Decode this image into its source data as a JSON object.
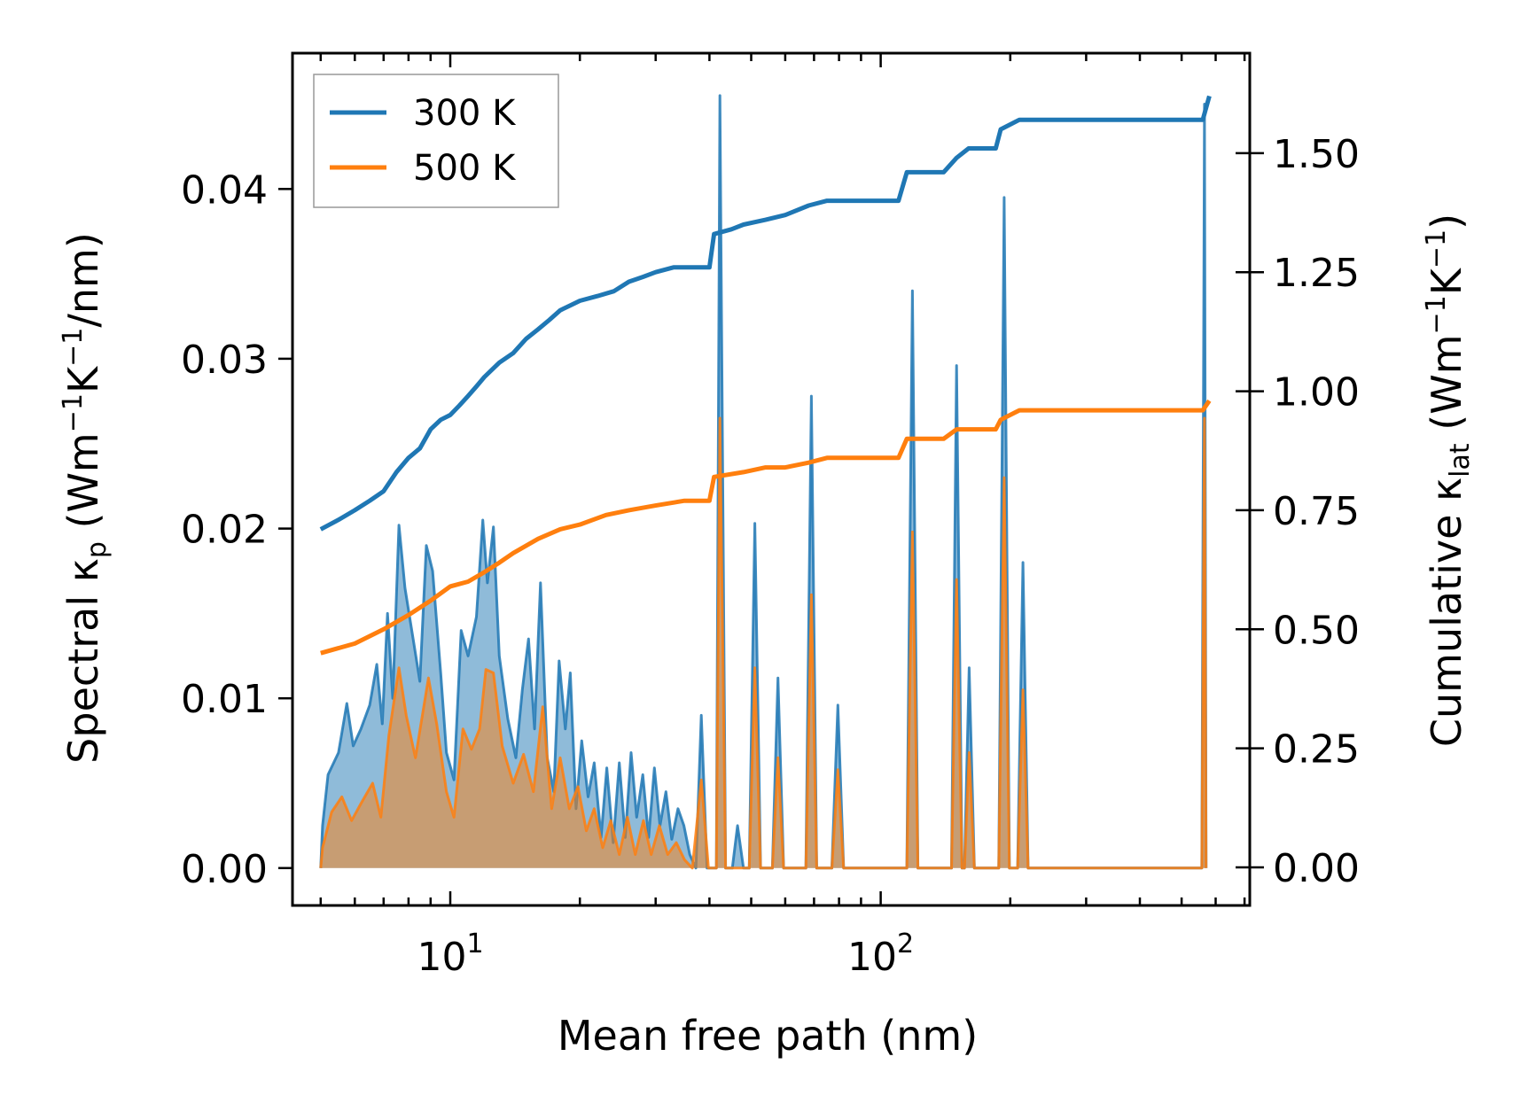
{
  "chart_data": {
    "type": "line",
    "xlabel": "Mean free path (nm)",
    "ylabel_left": {
      "prefix": "Spectral κ",
      "sub": "p",
      "units_open": " (Wm",
      "sup1": "−1",
      "units_mid": "K",
      "sup2": "−1",
      "units_close": "/nm)"
    },
    "ylabel_right": {
      "prefix": "Cumulative κ",
      "sub": "lat",
      "units_open": " (Wm",
      "sup1": "−1",
      "units_mid": "K",
      "sup2": "−1",
      "units_close": ")"
    },
    "x_scale": "log",
    "xlim": [
      4.3,
      720
    ],
    "ylim_left": [
      -0.0022,
      0.048
    ],
    "ylim_right": [
      -0.08,
      1.71
    ],
    "x_major_ticks": [
      {
        "value": 10,
        "base": "10",
        "exp": "1"
      },
      {
        "value": 100,
        "base": "10",
        "exp": "2"
      }
    ],
    "y_left_ticks": [
      {
        "value": 0.0,
        "label": "0.00"
      },
      {
        "value": 0.01,
        "label": "0.01"
      },
      {
        "value": 0.02,
        "label": "0.02"
      },
      {
        "value": 0.03,
        "label": "0.03"
      },
      {
        "value": 0.04,
        "label": "0.04"
      }
    ],
    "y_right_ticks": [
      {
        "value": 0.0,
        "label": "0.00"
      },
      {
        "value": 0.25,
        "label": "0.25"
      },
      {
        "value": 0.5,
        "label": "0.50"
      },
      {
        "value": 0.75,
        "label": "0.75"
      },
      {
        "value": 1.0,
        "label": "1.00"
      },
      {
        "value": 1.25,
        "label": "1.25"
      },
      {
        "value": 1.5,
        "label": "1.50"
      }
    ],
    "legend_position": "upper-left",
    "series": [
      {
        "name": "300 K",
        "color": "#1f77b4",
        "cumulative": [
          [
            5.0,
            0.71
          ],
          [
            5.5,
            0.73
          ],
          [
            6.0,
            0.75
          ],
          [
            6.5,
            0.77
          ],
          [
            7.0,
            0.79
          ],
          [
            7.5,
            0.83
          ],
          [
            8.0,
            0.86
          ],
          [
            8.5,
            0.88
          ],
          [
            9.0,
            0.92
          ],
          [
            9.5,
            0.94
          ],
          [
            10.0,
            0.95
          ],
          [
            10.5,
            0.97
          ],
          [
            11.0,
            0.99
          ],
          [
            11.5,
            1.01
          ],
          [
            12.0,
            1.03
          ],
          [
            13.0,
            1.06
          ],
          [
            14.0,
            1.08
          ],
          [
            15.0,
            1.11
          ],
          [
            16.0,
            1.13
          ],
          [
            17.0,
            1.15
          ],
          [
            18.0,
            1.17
          ],
          [
            19.0,
            1.18
          ],
          [
            20.0,
            1.19
          ],
          [
            22.0,
            1.2
          ],
          [
            24.0,
            1.21
          ],
          [
            26.0,
            1.23
          ],
          [
            28.0,
            1.24
          ],
          [
            30.0,
            1.25
          ],
          [
            33.0,
            1.26
          ],
          [
            36.0,
            1.26
          ],
          [
            40.0,
            1.26
          ],
          [
            41.0,
            1.33
          ],
          [
            45.0,
            1.34
          ],
          [
            48.0,
            1.35
          ],
          [
            54.0,
            1.36
          ],
          [
            60.0,
            1.37
          ],
          [
            68.0,
            1.39
          ],
          [
            75.0,
            1.4
          ],
          [
            100.0,
            1.4
          ],
          [
            110.0,
            1.4
          ],
          [
            115.0,
            1.46
          ],
          [
            140.0,
            1.46
          ],
          [
            150.0,
            1.49
          ],
          [
            160.0,
            1.51
          ],
          [
            185.0,
            1.51
          ],
          [
            190.0,
            1.55
          ],
          [
            210.0,
            1.57
          ],
          [
            560.0,
            1.57
          ],
          [
            580.0,
            1.62
          ]
        ],
        "spectral": [
          [
            5.0,
            0.0
          ],
          [
            5.05,
            0.0025
          ],
          [
            5.2,
            0.0055
          ],
          [
            5.5,
            0.0068
          ],
          [
            5.75,
            0.0097
          ],
          [
            5.95,
            0.0072
          ],
          [
            6.2,
            0.0082
          ],
          [
            6.5,
            0.0096
          ],
          [
            6.75,
            0.012
          ],
          [
            6.95,
            0.0085
          ],
          [
            7.15,
            0.015
          ],
          [
            7.35,
            0.01
          ],
          [
            7.6,
            0.0202
          ],
          [
            7.85,
            0.0165
          ],
          [
            8.2,
            0.0135
          ],
          [
            8.5,
            0.011
          ],
          [
            8.8,
            0.019
          ],
          [
            9.1,
            0.0175
          ],
          [
            9.5,
            0.0115
          ],
          [
            9.8,
            0.0068
          ],
          [
            10.2,
            0.0052
          ],
          [
            10.6,
            0.014
          ],
          [
            11.0,
            0.0125
          ],
          [
            11.5,
            0.0148
          ],
          [
            11.9,
            0.0205
          ],
          [
            12.2,
            0.0168
          ],
          [
            12.6,
            0.0201
          ],
          [
            13.0,
            0.0125
          ],
          [
            13.6,
            0.0088
          ],
          [
            14.2,
            0.0065
          ],
          [
            14.7,
            0.0105
          ],
          [
            15.2,
            0.0135
          ],
          [
            15.7,
            0.0082
          ],
          [
            16.2,
            0.0168
          ],
          [
            16.8,
            0.0065
          ],
          [
            17.4,
            0.0045
          ],
          [
            17.9,
            0.0122
          ],
          [
            18.5,
            0.0082
          ],
          [
            19.0,
            0.0115
          ],
          [
            19.6,
            0.0035
          ],
          [
            20.2,
            0.0075
          ],
          [
            20.9,
            0.0042
          ],
          [
            21.6,
            0.0062
          ],
          [
            22.4,
            0.0018
          ],
          [
            23.1,
            0.0059
          ],
          [
            23.9,
            0.0015
          ],
          [
            24.7,
            0.0062
          ],
          [
            25.5,
            0.0018
          ],
          [
            26.3,
            0.0068
          ],
          [
            27.1,
            0.003
          ],
          [
            28.0,
            0.0055
          ],
          [
            28.9,
            0.0018
          ],
          [
            29.8,
            0.0059
          ],
          [
            30.7,
            0.0025
          ],
          [
            31.7,
            0.0045
          ],
          [
            32.7,
            0.0017
          ],
          [
            33.8,
            0.0035
          ],
          [
            34.9,
            0.0025
          ],
          [
            36.0,
            0.0008
          ],
          [
            37.2,
            0.0
          ],
          [
            38.3,
            0.009
          ],
          [
            39.5,
            0.0
          ],
          [
            41.5,
            0.0
          ],
          [
            42.3,
            0.0455
          ],
          [
            43.6,
            0.0
          ],
          [
            45.2,
            0.0
          ],
          [
            46.5,
            0.0025
          ],
          [
            48.0,
            0.0
          ],
          [
            49.5,
            0.0
          ],
          [
            51.0,
            0.0203
          ],
          [
            52.6,
            0.0
          ],
          [
            56.0,
            0.0
          ],
          [
            57.7,
            0.0112
          ],
          [
            59.5,
            0.0
          ],
          [
            67.0,
            0.0
          ],
          [
            69.0,
            0.0278
          ],
          [
            71.0,
            0.0
          ],
          [
            77.0,
            0.0
          ],
          [
            79.5,
            0.0096
          ],
          [
            82.0,
            0.0
          ],
          [
            115.0,
            0.0
          ],
          [
            118.5,
            0.034
          ],
          [
            122.0,
            0.0
          ],
          [
            146.0,
            0.0
          ],
          [
            150.0,
            0.0296
          ],
          [
            154.5,
            0.0
          ],
          [
            156.5,
            0.0
          ],
          [
            160.5,
            0.0118
          ],
          [
            165.0,
            0.0
          ],
          [
            188.0,
            0.0
          ],
          [
            193.5,
            0.0395
          ],
          [
            199.0,
            0.0
          ],
          [
            208.0,
            0.0
          ],
          [
            214.0,
            0.018
          ],
          [
            220.0,
            0.0
          ],
          [
            557.0,
            0.0
          ],
          [
            565.0,
            0.045
          ],
          [
            570.0,
            0.0
          ]
        ]
      },
      {
        "name": "500 K",
        "color": "#ff7f0e",
        "cumulative": [
          [
            5.0,
            0.45
          ],
          [
            6.0,
            0.47
          ],
          [
            7.0,
            0.5
          ],
          [
            8.0,
            0.53
          ],
          [
            9.0,
            0.56
          ],
          [
            10.0,
            0.59
          ],
          [
            11.0,
            0.6
          ],
          [
            12.0,
            0.62
          ],
          [
            13.0,
            0.64
          ],
          [
            14.0,
            0.66
          ],
          [
            16.0,
            0.69
          ],
          [
            18.0,
            0.71
          ],
          [
            20.0,
            0.72
          ],
          [
            23.0,
            0.74
          ],
          [
            26.0,
            0.75
          ],
          [
            30.0,
            0.76
          ],
          [
            35.0,
            0.77
          ],
          [
            40.0,
            0.77
          ],
          [
            41.0,
            0.82
          ],
          [
            48.0,
            0.83
          ],
          [
            54.0,
            0.84
          ],
          [
            60.0,
            0.84
          ],
          [
            68.0,
            0.85
          ],
          [
            75.0,
            0.86
          ],
          [
            110.0,
            0.86
          ],
          [
            115.0,
            0.9
          ],
          [
            140.0,
            0.9
          ],
          [
            150.0,
            0.92
          ],
          [
            185.0,
            0.92
          ],
          [
            190.0,
            0.94
          ],
          [
            210.0,
            0.96
          ],
          [
            560.0,
            0.96
          ],
          [
            580.0,
            0.98
          ]
        ],
        "spectral": [
          [
            5.0,
            0.0
          ],
          [
            5.05,
            0.0012
          ],
          [
            5.3,
            0.0033
          ],
          [
            5.6,
            0.0042
          ],
          [
            5.9,
            0.0028
          ],
          [
            6.2,
            0.0038
          ],
          [
            6.6,
            0.005
          ],
          [
            6.9,
            0.003
          ],
          [
            7.2,
            0.0078
          ],
          [
            7.6,
            0.0118
          ],
          [
            7.9,
            0.009
          ],
          [
            8.3,
            0.0065
          ],
          [
            8.9,
            0.0112
          ],
          [
            9.3,
            0.0085
          ],
          [
            9.8,
            0.0045
          ],
          [
            10.2,
            0.003
          ],
          [
            10.7,
            0.0082
          ],
          [
            11.2,
            0.007
          ],
          [
            11.7,
            0.0082
          ],
          [
            12.1,
            0.0117
          ],
          [
            12.6,
            0.0115
          ],
          [
            13.2,
            0.0072
          ],
          [
            14.0,
            0.005
          ],
          [
            14.8,
            0.0067
          ],
          [
            15.6,
            0.0045
          ],
          [
            16.4,
            0.0095
          ],
          [
            17.2,
            0.0035
          ],
          [
            18.0,
            0.0065
          ],
          [
            18.9,
            0.0035
          ],
          [
            19.8,
            0.0048
          ],
          [
            20.7,
            0.0022
          ],
          [
            21.6,
            0.0035
          ],
          [
            22.6,
            0.0012
          ],
          [
            23.6,
            0.0028
          ],
          [
            24.7,
            0.0008
          ],
          [
            25.8,
            0.003
          ],
          [
            26.9,
            0.0008
          ],
          [
            28.1,
            0.0028
          ],
          [
            29.3,
            0.0008
          ],
          [
            30.6,
            0.0025
          ],
          [
            32.0,
            0.0008
          ],
          [
            33.5,
            0.0015
          ],
          [
            35.0,
            0.0005
          ],
          [
            36.5,
            0.0
          ],
          [
            38.3,
            0.0052
          ],
          [
            39.8,
            0.0
          ],
          [
            41.5,
            0.0
          ],
          [
            42.3,
            0.0265
          ],
          [
            43.6,
            0.0
          ],
          [
            49.5,
            0.0
          ],
          [
            51.0,
            0.0118
          ],
          [
            52.6,
            0.0
          ],
          [
            56.0,
            0.0
          ],
          [
            57.7,
            0.0065
          ],
          [
            59.5,
            0.0
          ],
          [
            67.0,
            0.0
          ],
          [
            69.0,
            0.0161
          ],
          [
            71.0,
            0.0
          ],
          [
            77.0,
            0.0
          ],
          [
            79.5,
            0.0058
          ],
          [
            82.0,
            0.0
          ],
          [
            115.0,
            0.0
          ],
          [
            118.5,
            0.0198
          ],
          [
            122.0,
            0.0
          ],
          [
            146.0,
            0.0
          ],
          [
            150.0,
            0.017
          ],
          [
            154.5,
            0.0
          ],
          [
            156.5,
            0.0
          ],
          [
            160.5,
            0.0068
          ],
          [
            165.0,
            0.0
          ],
          [
            188.0,
            0.0
          ],
          [
            193.5,
            0.023
          ],
          [
            199.0,
            0.0
          ],
          [
            208.0,
            0.0
          ],
          [
            214.0,
            0.0105
          ],
          [
            220.0,
            0.0
          ],
          [
            557.0,
            0.0
          ],
          [
            565.0,
            0.0265
          ],
          [
            570.0,
            0.0
          ]
        ]
      }
    ]
  }
}
